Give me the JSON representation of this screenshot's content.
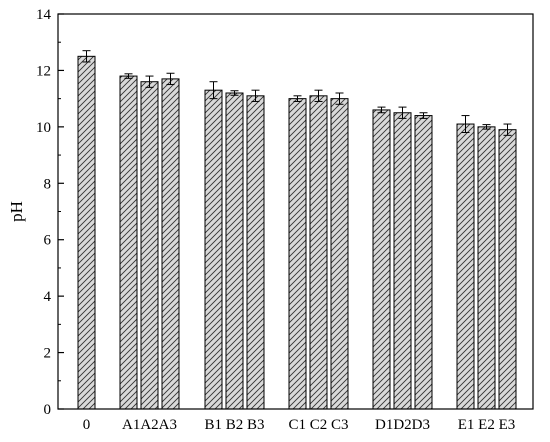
{
  "chart_data": {
    "type": "bar",
    "title": "",
    "xlabel": "",
    "ylabel": "pH",
    "ylim": [
      0,
      14
    ],
    "yticks": [
      0,
      2,
      4,
      6,
      8,
      10,
      12,
      14
    ],
    "grid": false,
    "legend": "none",
    "bar_fill": "#d9d9d9",
    "bar_hatch": "diagonal",
    "groups": [
      {
        "label": "0",
        "bars": [
          {
            "x": "0",
            "value": 12.5,
            "error": 0.2
          }
        ]
      },
      {
        "label": "A1A2A3",
        "bars": [
          {
            "x": "A1",
            "value": 11.8,
            "error": 0.08
          },
          {
            "x": "A2",
            "value": 11.6,
            "error": 0.2
          },
          {
            "x": "A3",
            "value": 11.7,
            "error": 0.2
          }
        ]
      },
      {
        "label": "B1 B2 B3",
        "bars": [
          {
            "x": "B1",
            "value": 11.3,
            "error": 0.3
          },
          {
            "x": "B2",
            "value": 11.2,
            "error": 0.08
          },
          {
            "x": "B3",
            "value": 11.1,
            "error": 0.2
          }
        ]
      },
      {
        "label": "C1 C2 C3",
        "bars": [
          {
            "x": "C1",
            "value": 11.0,
            "error": 0.1
          },
          {
            "x": "C2",
            "value": 11.1,
            "error": 0.2
          },
          {
            "x": "C3",
            "value": 11.0,
            "error": 0.2
          }
        ]
      },
      {
        "label": "D1D2D3",
        "bars": [
          {
            "x": "D1",
            "value": 10.6,
            "error": 0.1
          },
          {
            "x": "D2",
            "value": 10.5,
            "error": 0.2
          },
          {
            "x": "D3",
            "value": 10.4,
            "error": 0.1
          }
        ]
      },
      {
        "label": "E1 E2 E3",
        "bars": [
          {
            "x": "E1",
            "value": 10.1,
            "error": 0.3
          },
          {
            "x": "E2",
            "value": 10.0,
            "error": 0.08
          },
          {
            "x": "E3",
            "value": 9.9,
            "error": 0.2
          }
        ]
      }
    ]
  }
}
